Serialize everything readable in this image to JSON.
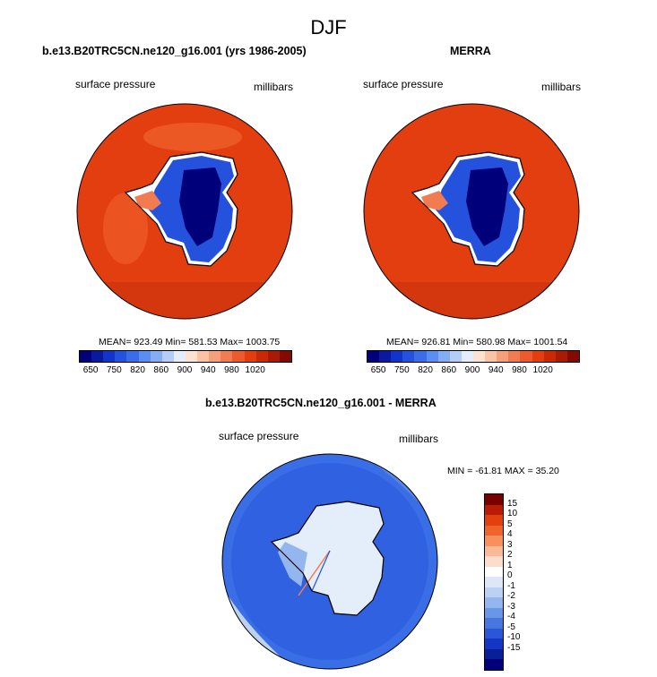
{
  "figure": {
    "season": "DJF"
  },
  "panels": [
    {
      "title": "b.e13.B20TRC5CN.ne120_g16.001 (yrs 1986-2005)",
      "variable": "surface pressure",
      "units": "millibars",
      "stats": "MEAN= 923.49  Min= 581.53  Max= 1003.75"
    },
    {
      "title": "MERRA",
      "variable": "surface pressure",
      "units": "millibars",
      "stats": "MEAN= 926.81  Min= 580.98  Max= 1001.54"
    },
    {
      "title": "b.e13.B20TRC5CN.ne120_g16.001 - MERRA",
      "variable": "surface pressure",
      "units": "millibars",
      "stats": "MIN = -61.81 MAX =  35.20"
    }
  ],
  "colorbar_abs": {
    "colors": [
      "#00007a",
      "#0a1a9c",
      "#1234c8",
      "#2452dc",
      "#3a6ee6",
      "#5a8ef0",
      "#84aef4",
      "#b4ccf6",
      "#e4eefa",
      "#fde2d2",
      "#fbc2a4",
      "#f6a07a",
      "#f27c52",
      "#ec5a2e",
      "#e33e10",
      "#c82a08",
      "#a81c04",
      "#820a00"
    ],
    "labels": [
      "650",
      "750",
      "820",
      "860",
      "900",
      "940",
      "980",
      "1020"
    ]
  },
  "colorbar_diff": {
    "colors": [
      "#7a0000",
      "#b81c04",
      "#e2400e",
      "#f0642c",
      "#f8905e",
      "#fab894",
      "#fcdccc",
      "#ffffff",
      "#dce8f8",
      "#bcd2f4",
      "#94b6ee",
      "#6a96e8",
      "#4876e0",
      "#2a56d8",
      "#1436c6",
      "#0a1e9a",
      "#00007a"
    ],
    "labels": [
      "15",
      "10",
      "5",
      "4",
      "3",
      "2",
      "1",
      "0",
      "-1",
      "-2",
      "-3",
      "-4",
      "-5",
      "-10",
      "-15"
    ]
  },
  "map_colors": {
    "ocean_model": "#e33e10",
    "ocean_obs": "#e33e10",
    "ice_edge": "#f5f5f5",
    "interior_dark": "#00007a",
    "diff_ocean": "#3a6ee6",
    "diff_land": "#e8eefa"
  }
}
